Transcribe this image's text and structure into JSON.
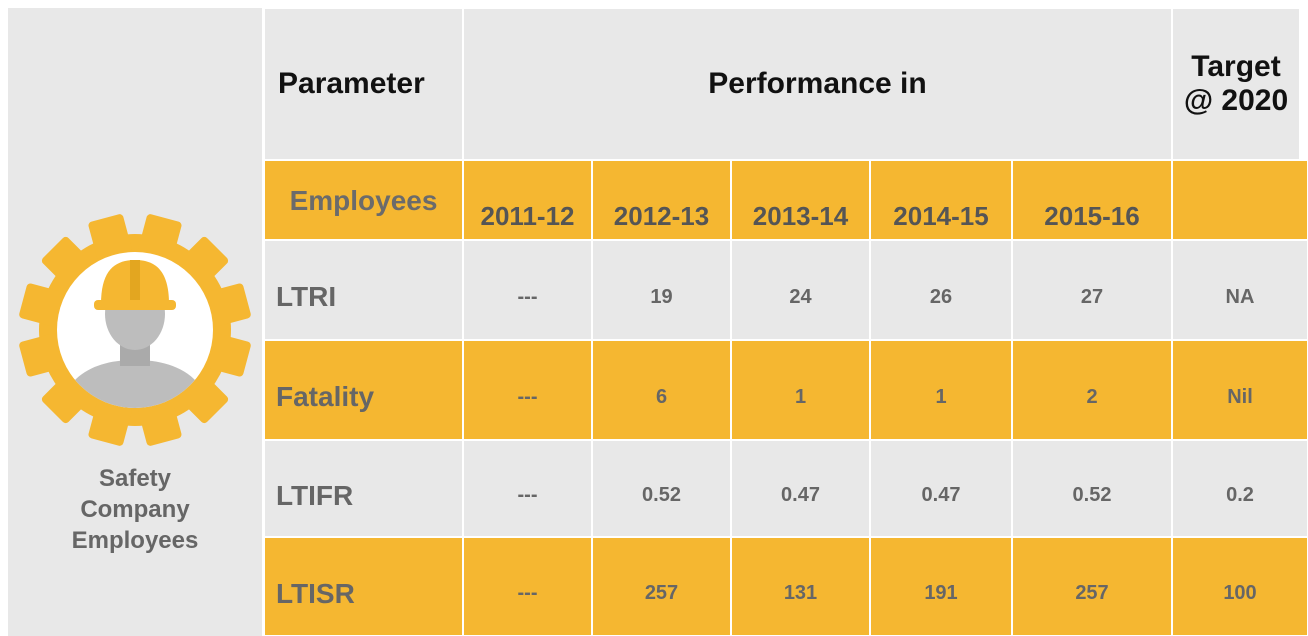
{
  "panel": {
    "label": "Safety Company Employees"
  },
  "table": {
    "header": [
      "Parameter",
      "Performance in",
      "Target @ 2020"
    ],
    "subheader": [
      "Employees",
      "2011-12",
      "2012-13",
      "2013-14",
      "2014-15",
      "2015-16"
    ],
    "rows": [
      [
        "LTRI",
        "---",
        19,
        24,
        26,
        27,
        "NA"
      ],
      [
        "Fatality",
        "---",
        6,
        1,
        1,
        2,
        "Nil"
      ],
      [
        "LTIFR",
        "---",
        0.52,
        0.47,
        0.47,
        0.52,
        0.2
      ],
      [
        "LTISR",
        "---",
        257,
        131,
        191,
        257,
        100
      ]
    ]
  }
}
